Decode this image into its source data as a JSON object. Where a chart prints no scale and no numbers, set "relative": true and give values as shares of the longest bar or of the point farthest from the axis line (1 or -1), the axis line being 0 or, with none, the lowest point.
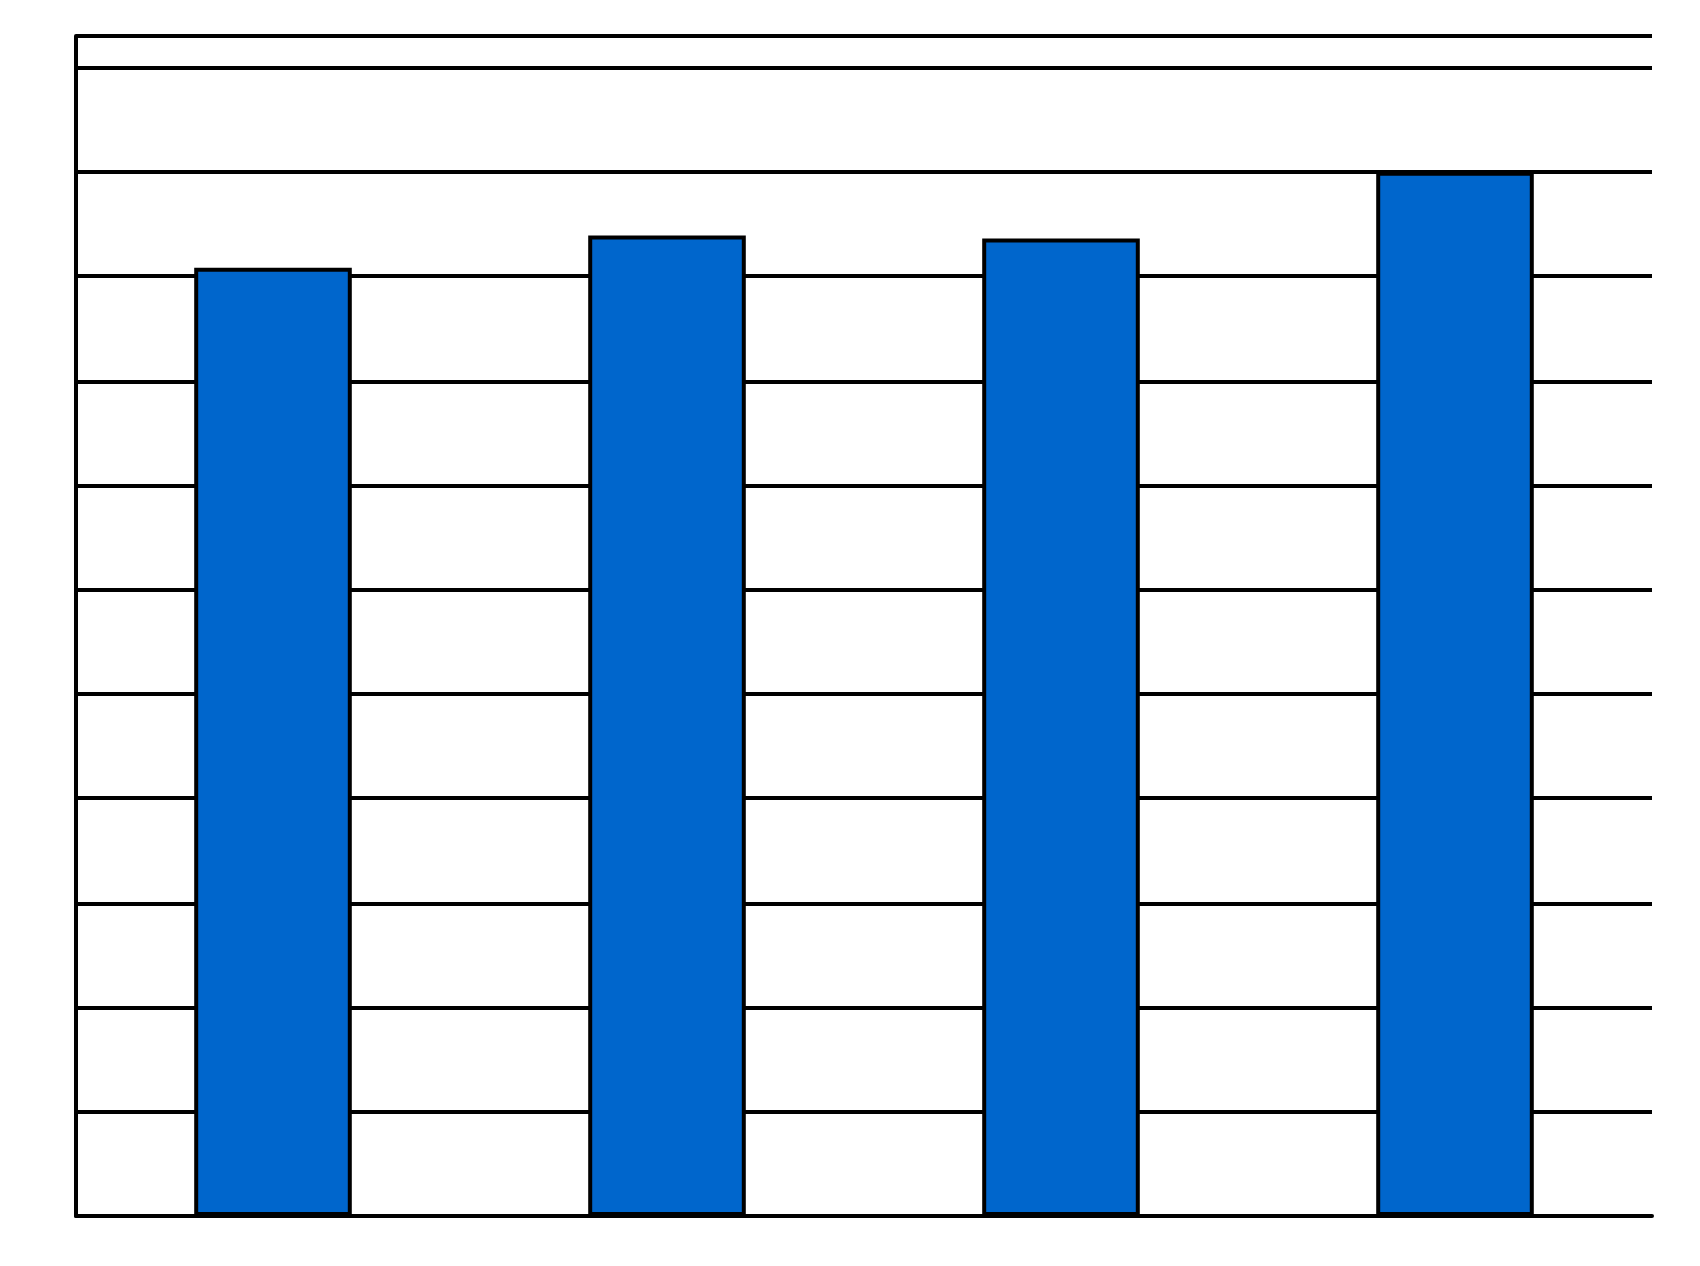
{
  "chart_data": {
    "type": "bar",
    "relative": true,
    "categories": [
      null,
      null,
      null,
      null
    ],
    "values": [
      0.908,
      0.939,
      0.936,
      1
    ],
    "color": "#0066cc",
    "grid": true
  }
}
